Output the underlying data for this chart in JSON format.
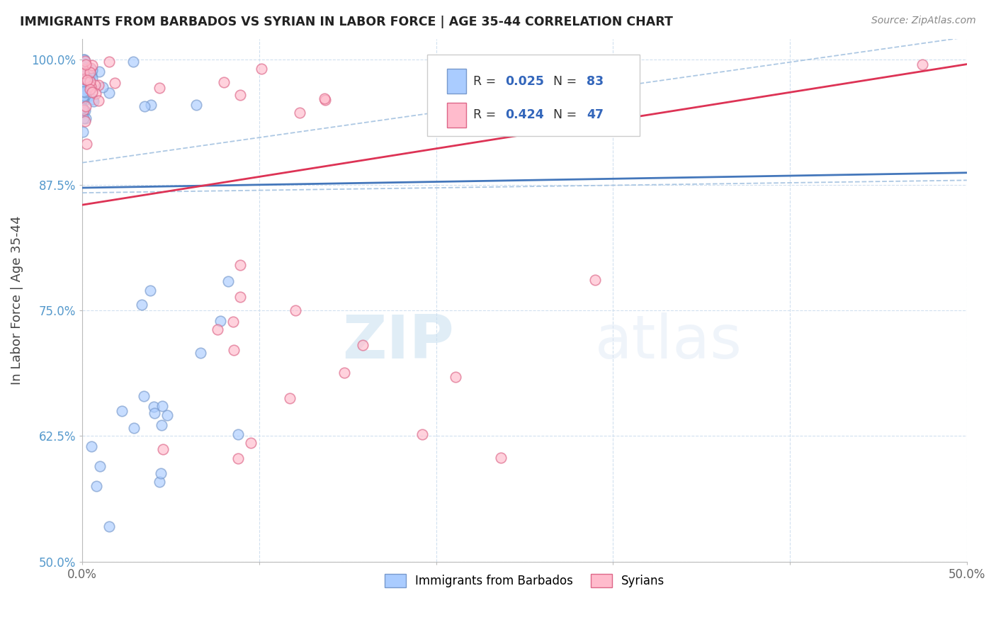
{
  "title": "IMMIGRANTS FROM BARBADOS VS SYRIAN IN LABOR FORCE | AGE 35-44 CORRELATION CHART",
  "source": "Source: ZipAtlas.com",
  "xlabel": "",
  "ylabel": "In Labor Force | Age 35-44",
  "xlim": [
    0.0,
    0.5
  ],
  "ylim": [
    0.5,
    1.02
  ],
  "xticks": [
    0.0,
    0.1,
    0.2,
    0.3,
    0.4,
    0.5
  ],
  "yticks": [
    0.5,
    0.625,
    0.75,
    0.875,
    1.0
  ],
  "xticklabels": [
    "0.0%",
    "",
    "",
    "",
    "",
    "50.0%"
  ],
  "yticklabels": [
    "50.0%",
    "62.5%",
    "75.0%",
    "87.5%",
    "100.0%"
  ],
  "barbados_color": "#aaccff",
  "syrian_color": "#ffbbcc",
  "barbados_edge": "#7799cc",
  "syrian_edge": "#dd6688",
  "trend_barbados": "#4477bb",
  "trend_syrian": "#dd3355",
  "ci_barbados": "#99bbdd",
  "legend_label_barbados": "Immigrants from Barbados",
  "legend_label_syrian": "Syrians",
  "watermark": "ZIPatlas",
  "background_color": "#ffffff",
  "R_barbados": 0.025,
  "N_barbados": 83,
  "R_syrian": 0.424,
  "N_syrian": 47,
  "grid_color": "#ccddee",
  "ytick_color": "#5599cc",
  "xtick_color": "#666666"
}
